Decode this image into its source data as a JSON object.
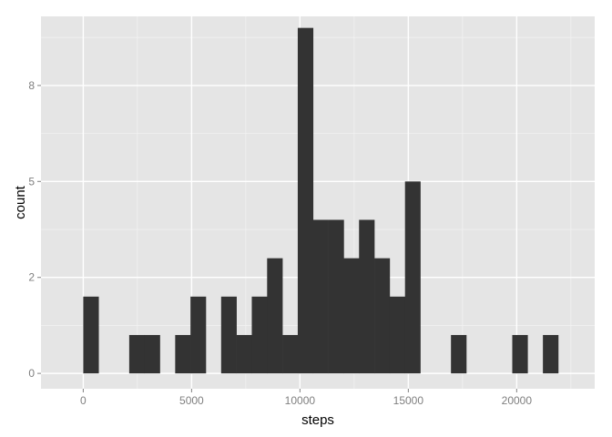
{
  "chart_data": {
    "type": "bar",
    "subtype": "histogram",
    "title": "",
    "xlabel": "steps",
    "ylabel": "count",
    "xlim": [
      -1950,
      23600
    ],
    "ylim": [
      -0.4,
      9.3
    ],
    "x_ticks": [
      0,
      5000,
      10000,
      15000,
      20000
    ],
    "x_tick_labels": [
      "0",
      "5000",
      "10000",
      "15000",
      "20000"
    ],
    "y_ticks": [
      0,
      2.5,
      5,
      7.5
    ],
    "y_tick_labels": [
      "0",
      "2",
      "5",
      "8"
    ],
    "bin_width": 707,
    "bins": [
      {
        "start": 0,
        "count": 2
      },
      {
        "start": 2121,
        "count": 1
      },
      {
        "start": 2828,
        "count": 1
      },
      {
        "start": 4242,
        "count": 1
      },
      {
        "start": 4949,
        "count": 2
      },
      {
        "start": 6363,
        "count": 2
      },
      {
        "start": 7070,
        "count": 1
      },
      {
        "start": 7777,
        "count": 2
      },
      {
        "start": 8484,
        "count": 3
      },
      {
        "start": 9191,
        "count": 1
      },
      {
        "start": 9898,
        "count": 9
      },
      {
        "start": 10605,
        "count": 4
      },
      {
        "start": 11312,
        "count": 4
      },
      {
        "start": 12019,
        "count": 3
      },
      {
        "start": 12726,
        "count": 4
      },
      {
        "start": 13433,
        "count": 3
      },
      {
        "start": 14140,
        "count": 2
      },
      {
        "start": 14847,
        "count": 5
      },
      {
        "start": 16968,
        "count": 1
      },
      {
        "start": 19796,
        "count": 1
      },
      {
        "start": 21210,
        "count": 1
      }
    ],
    "grid": true,
    "colors": {
      "panel_background": "#e5e5e5",
      "grid_major": "#ffffff",
      "grid_minor": "#f2f2f2",
      "bar_fill": "#333333"
    }
  }
}
